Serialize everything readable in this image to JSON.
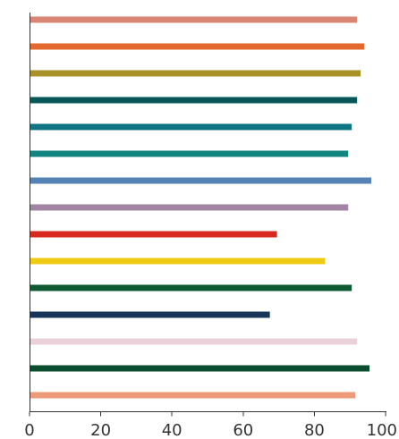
{
  "chart_data": {
    "type": "bar",
    "orientation": "horizontal",
    "title": "",
    "xlabel": "",
    "ylabel": "",
    "xlim": [
      0,
      100
    ],
    "xticks": [
      0,
      20,
      40,
      60,
      80,
      100
    ],
    "xtick_labels": [
      "0",
      "20",
      "40",
      "60",
      "80",
      "100"
    ],
    "grid": false,
    "legend": "none",
    "categories": [
      "",
      "",
      "",
      "",
      "",
      "",
      "",
      "",
      "",
      "",
      "",
      "",
      "",
      "",
      ""
    ],
    "values": [
      92,
      94,
      93,
      92,
      90.5,
      89.5,
      96,
      89.5,
      69.5,
      83,
      90.5,
      67.5,
      92,
      95.5,
      91.5
    ],
    "colors": [
      "#d98674",
      "#e3692f",
      "#a89127",
      "#075757",
      "#0f7585",
      "#128580",
      "#5583b5",
      "#a086a3",
      "#d8291f",
      "#f0cb13",
      "#0e5a32",
      "#17375a",
      "#ead0d9",
      "#0b4d2f",
      "#ed9a79"
    ]
  }
}
